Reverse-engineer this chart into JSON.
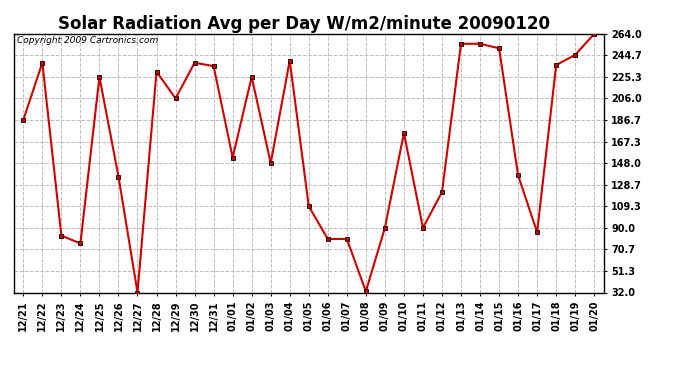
{
  "title": "Solar Radiation Avg per Day W/m2/minute 20090120",
  "copyright": "Copyright 2009 Cartronics.com",
  "labels": [
    "12/21",
    "12/22",
    "12/23",
    "12/24",
    "12/25",
    "12/26",
    "12/27",
    "12/28",
    "12/29",
    "12/30",
    "12/31",
    "01/01",
    "01/02",
    "01/03",
    "01/04",
    "01/05",
    "01/06",
    "01/07",
    "01/08",
    "01/09",
    "01/10",
    "01/11",
    "01/12",
    "01/13",
    "01/14",
    "01/15",
    "01/16",
    "01/17",
    "01/18",
    "01/19",
    "01/20"
  ],
  "values": [
    186.7,
    238.0,
    83.0,
    76.0,
    225.3,
    136.0,
    32.0,
    230.0,
    206.0,
    238.0,
    235.0,
    153.0,
    225.3,
    148.0,
    240.0,
    109.3,
    80.0,
    80.0,
    33.0,
    90.0,
    175.0,
    90.0,
    122.0,
    255.0,
    255.0,
    251.0,
    137.0,
    86.0,
    236.0,
    245.0,
    264.0
  ],
  "yticks": [
    32.0,
    51.3,
    70.7,
    90.0,
    109.3,
    128.7,
    148.0,
    167.3,
    186.7,
    206.0,
    225.3,
    244.7,
    264.0
  ],
  "line_color": "#cc0000",
  "bg_color": "#ffffff",
  "grid_color": "#bbbbbb",
  "title_fontsize": 12,
  "copyright_fontsize": 6.5,
  "tick_fontsize": 7,
  "ymin": 32.0,
  "ymax": 264.0
}
